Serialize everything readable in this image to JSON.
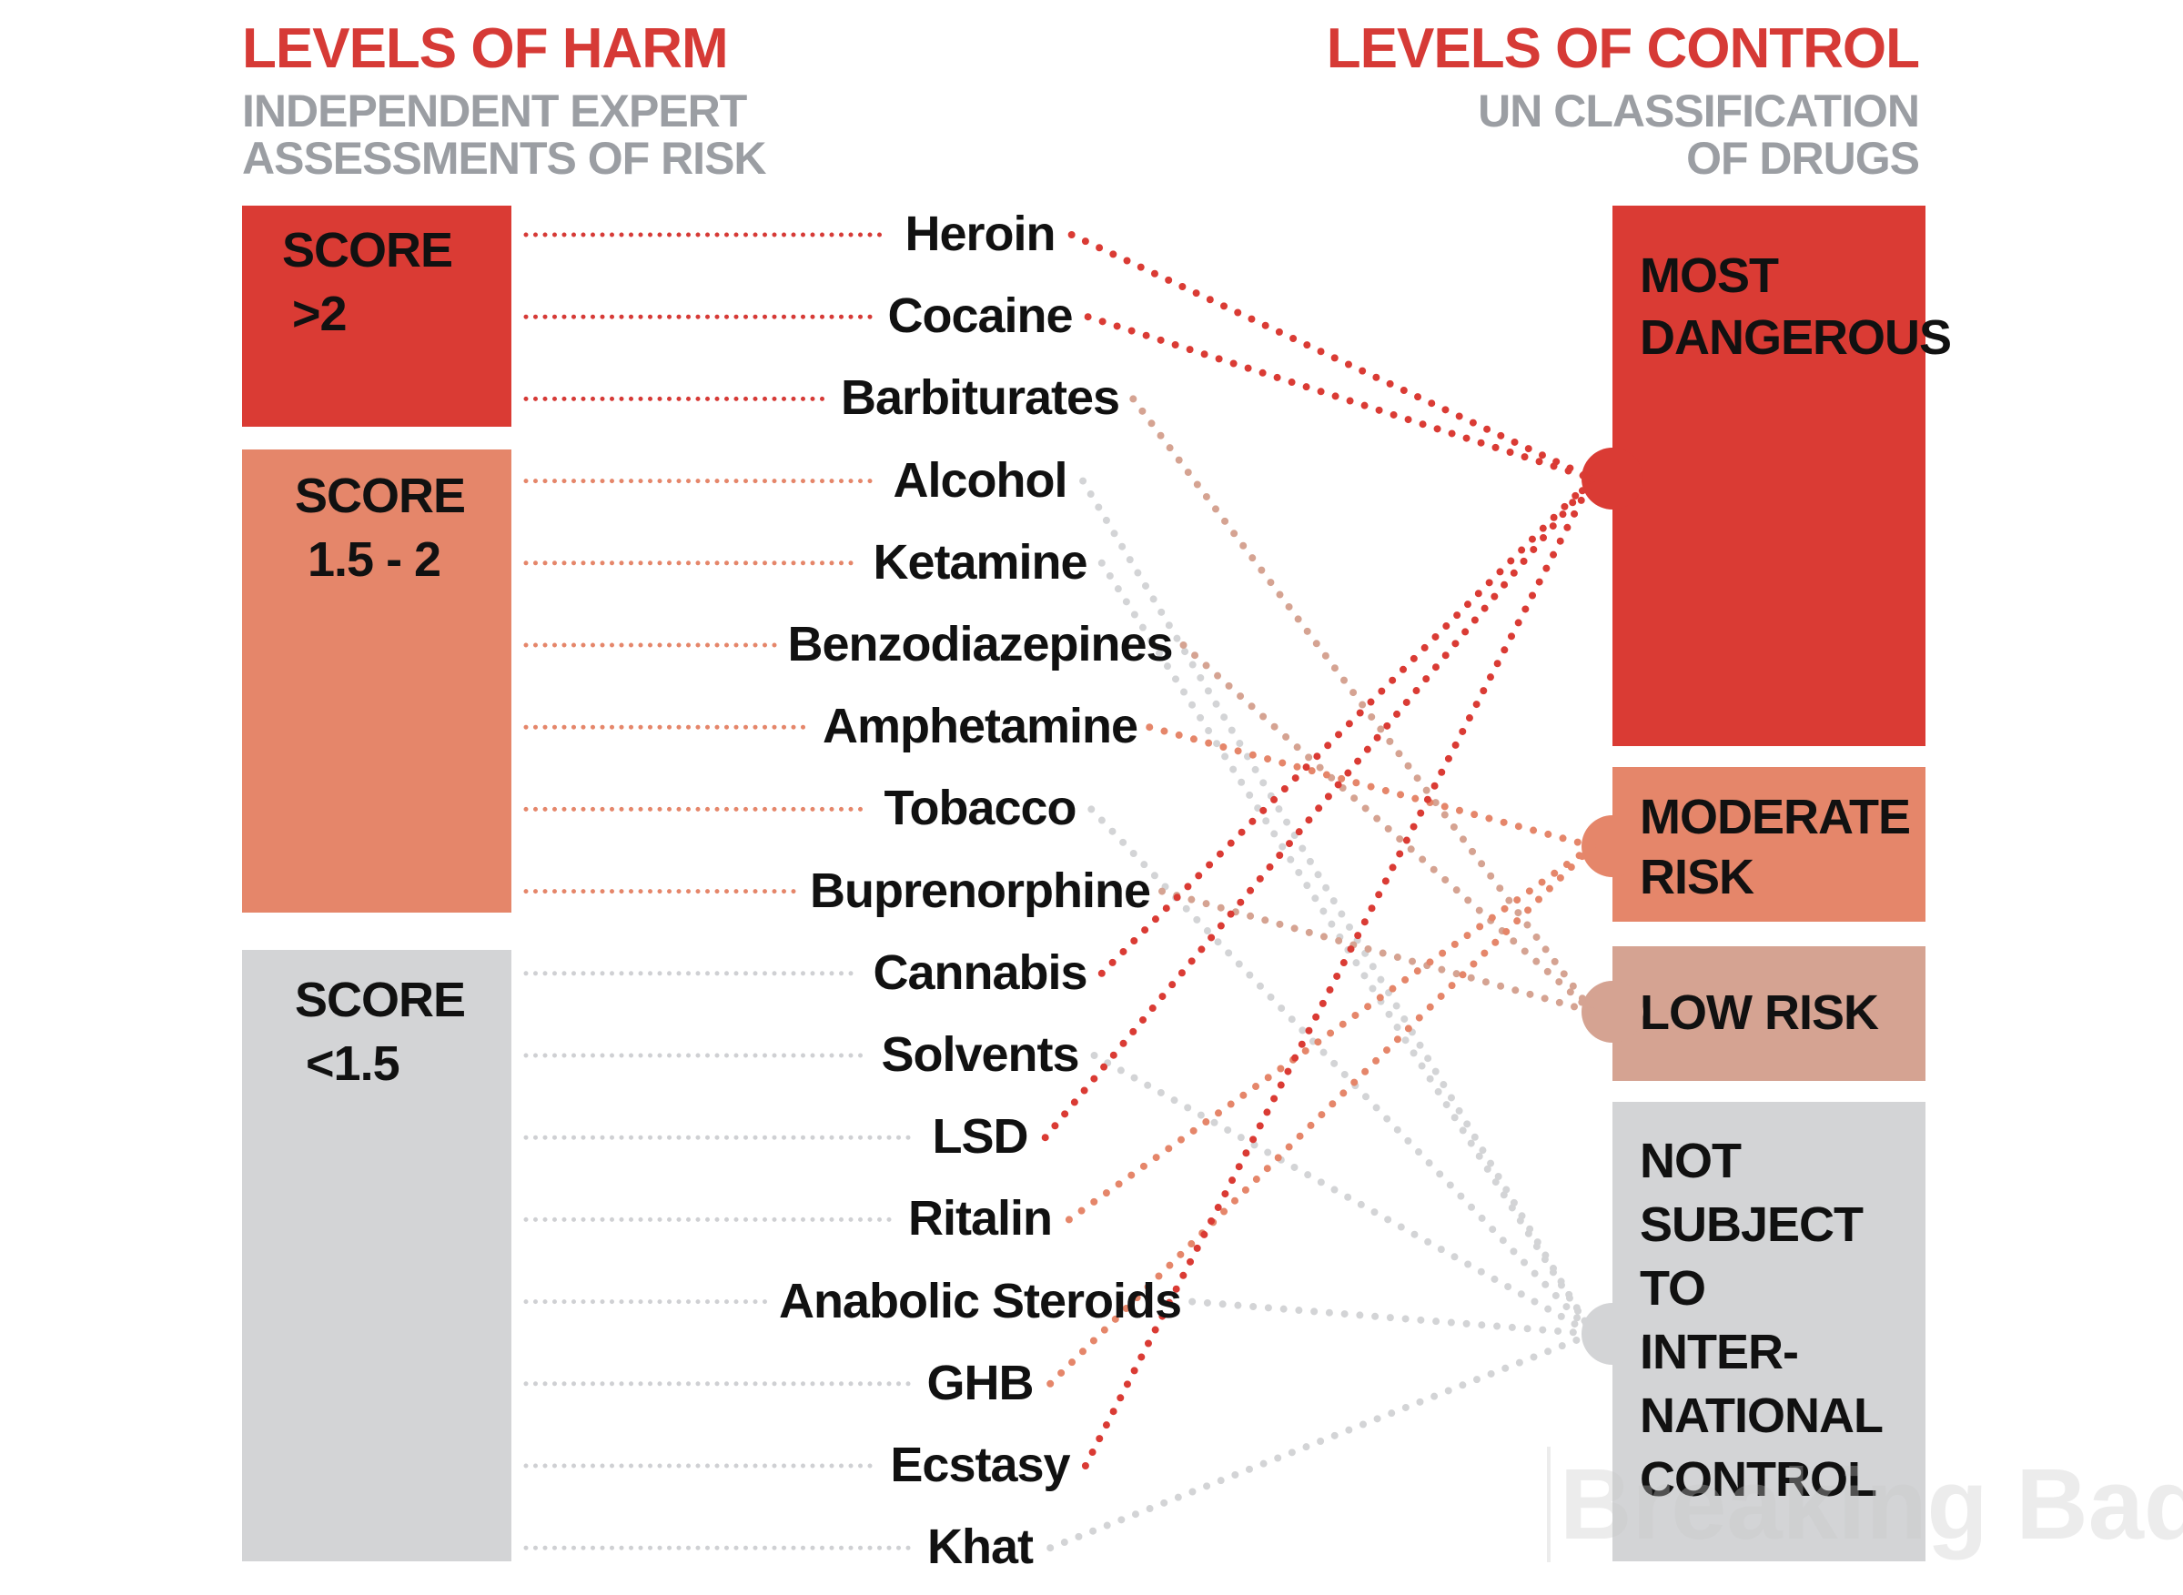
{
  "colors": {
    "high": "#da3b34",
    "moderate": "#e5866a",
    "low": "#d5a392",
    "none": "#d3d4d6",
    "left_high_line": "#d63a36",
    "left_mod_line": "#e5866a",
    "left_low_line": "#cfd0d3",
    "title": "#d63a36",
    "subtitle": "#9b9ea3"
  },
  "left_header": {
    "title": "LEVELS OF HARM",
    "subtitle_line1": "INDEPENDENT EXPERT",
    "subtitle_line2": "ASSESSMENTS OF RISK"
  },
  "right_header": {
    "title": "LEVELS OF CONTROL",
    "subtitle_line1": "UN CLASSIFICATION",
    "subtitle_line2": "OF DRUGS"
  },
  "harm_levels": [
    {
      "id": "high",
      "line1": "SCORE",
      "line2": ">2"
    },
    {
      "id": "moderate",
      "line1": "SCORE",
      "line2": "1.5 - 2"
    },
    {
      "id": "low",
      "line1": "SCORE",
      "line2": "<1.5"
    }
  ],
  "control_levels": [
    {
      "id": "most",
      "lines": [
        "MOST",
        "DANGEROUS"
      ]
    },
    {
      "id": "moderate",
      "lines": [
        "MODERATE",
        "RISK"
      ]
    },
    {
      "id": "low",
      "lines": [
        "LOW RISK"
      ]
    },
    {
      "id": "none",
      "lines": [
        "NOT",
        "SUBJECT",
        "TO",
        "INTER-",
        "NATIONAL",
        "CONTROL"
      ]
    }
  ],
  "drugs": [
    {
      "name": "Heroin",
      "harm": "high",
      "control": "most"
    },
    {
      "name": "Cocaine",
      "harm": "high",
      "control": "most"
    },
    {
      "name": "Barbiturates",
      "harm": "high",
      "control": "low"
    },
    {
      "name": "Alcohol",
      "harm": "moderate",
      "control": "none"
    },
    {
      "name": "Ketamine",
      "harm": "moderate",
      "control": "none"
    },
    {
      "name": "Benzodiazepines",
      "harm": "moderate",
      "control": "low"
    },
    {
      "name": "Amphetamine",
      "harm": "moderate",
      "control": "moderate"
    },
    {
      "name": "Tobacco",
      "harm": "moderate",
      "control": "none"
    },
    {
      "name": "Buprenorphine",
      "harm": "moderate",
      "control": "low"
    },
    {
      "name": "Cannabis",
      "harm": "low",
      "control": "most"
    },
    {
      "name": "Solvents",
      "harm": "low",
      "control": "none"
    },
    {
      "name": "LSD",
      "harm": "low",
      "control": "most"
    },
    {
      "name": "Ritalin",
      "harm": "low",
      "control": "moderate"
    },
    {
      "name": "Anabolic Steroids",
      "harm": "low",
      "control": "none"
    },
    {
      "name": "GHB",
      "harm": "low",
      "control": "moderate"
    },
    {
      "name": "Ecstasy",
      "harm": "low",
      "control": "most"
    },
    {
      "name": "Khat",
      "harm": "low",
      "control": "none"
    }
  ],
  "watermark": "Breaking Bad"
}
